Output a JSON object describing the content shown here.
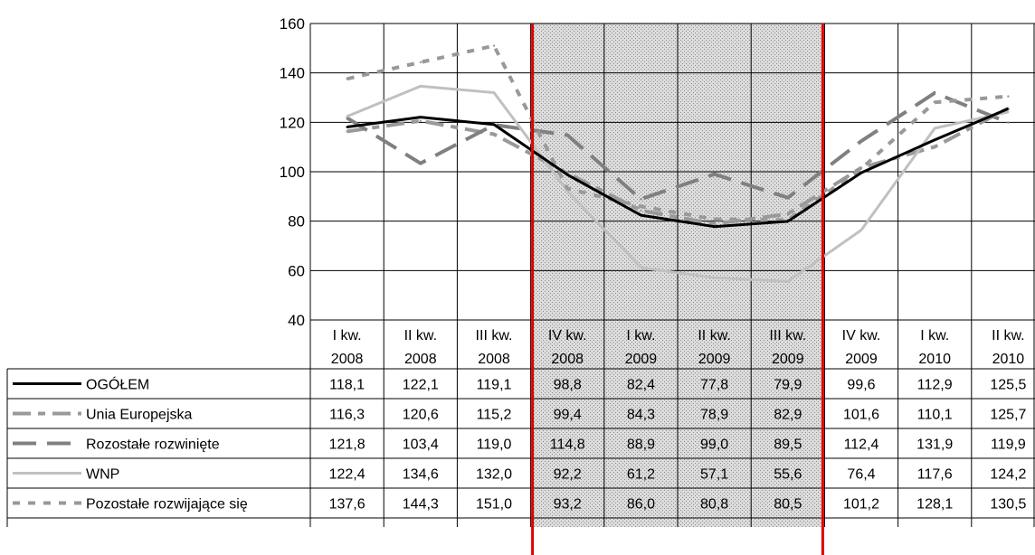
{
  "chart_data": {
    "type": "line",
    "categories": [
      [
        "I kw.",
        "2008"
      ],
      [
        "II kw.",
        "2008"
      ],
      [
        "III kw.",
        "2008"
      ],
      [
        "IV kw.",
        "2008"
      ],
      [
        "I kw.",
        "2009"
      ],
      [
        "II kw.",
        "2009"
      ],
      [
        "III kw.",
        "2009"
      ],
      [
        "IV kw.",
        "2009"
      ],
      [
        "I kw.",
        "2010"
      ],
      [
        "II kw.",
        "2010"
      ]
    ],
    "ylim": [
      40,
      160
    ],
    "yticks": [
      40,
      60,
      80,
      100,
      120,
      140,
      160
    ],
    "grid": true,
    "highlight_range": [
      3,
      6
    ],
    "series": [
      {
        "name": "OGÓŁEM",
        "values": [
          118.1,
          122.1,
          119.1,
          98.8,
          82.4,
          77.8,
          79.9,
          99.6,
          112.9,
          125.5
        ],
        "color": "#000000",
        "style": "solid"
      },
      {
        "name": "Unia Europejska",
        "values": [
          116.3,
          120.6,
          115.2,
          99.4,
          84.3,
          78.9,
          82.9,
          101.6,
          110.1,
          125.7
        ],
        "color": "#999999",
        "style": "long-short-dash"
      },
      {
        "name": "Rozostałe rozwinięte",
        "values": [
          121.8,
          103.4,
          119.0,
          114.8,
          88.9,
          99.0,
          89.5,
          112.4,
          131.9,
          119.9
        ],
        "color": "#808080",
        "style": "long-dash"
      },
      {
        "name": "WNP",
        "values": [
          122.4,
          134.6,
          132.0,
          92.2,
          61.2,
          57.1,
          55.6,
          76.4,
          117.6,
          124.2
        ],
        "color": "#c0c0c0",
        "style": "solid"
      },
      {
        "name": "Pozostałe rozwijające się",
        "values": [
          137.6,
          144.3,
          151.0,
          93.2,
          86.0,
          80.8,
          80.5,
          101.2,
          128.1,
          130.5
        ],
        "color": "#999999",
        "style": "short-dash"
      }
    ],
    "table_values": [
      [
        "118,1",
        "122,1",
        "119,1",
        "98,8",
        "82,4",
        "77,8",
        "79,9",
        "99,6",
        "112,9",
        "125,5"
      ],
      [
        "116,3",
        "120,6",
        "115,2",
        "99,4",
        "84,3",
        "78,9",
        "82,9",
        "101,6",
        "110,1",
        "125,7"
      ],
      [
        "121,8",
        "103,4",
        "119,0",
        "114,8",
        "88,9",
        "99,0",
        "89,5",
        "112,4",
        "131,9",
        "119,9"
      ],
      [
        "122,4",
        "134,6",
        "132,0",
        "92,2",
        "61,2",
        "57,1",
        "55,6",
        "76,4",
        "117,6",
        "124,2"
      ],
      [
        "137,6",
        "144,3",
        "151,0",
        "93,2",
        "86,0",
        "80,8",
        "80,5",
        "101,2",
        "128,1",
        "130,5"
      ]
    ]
  }
}
